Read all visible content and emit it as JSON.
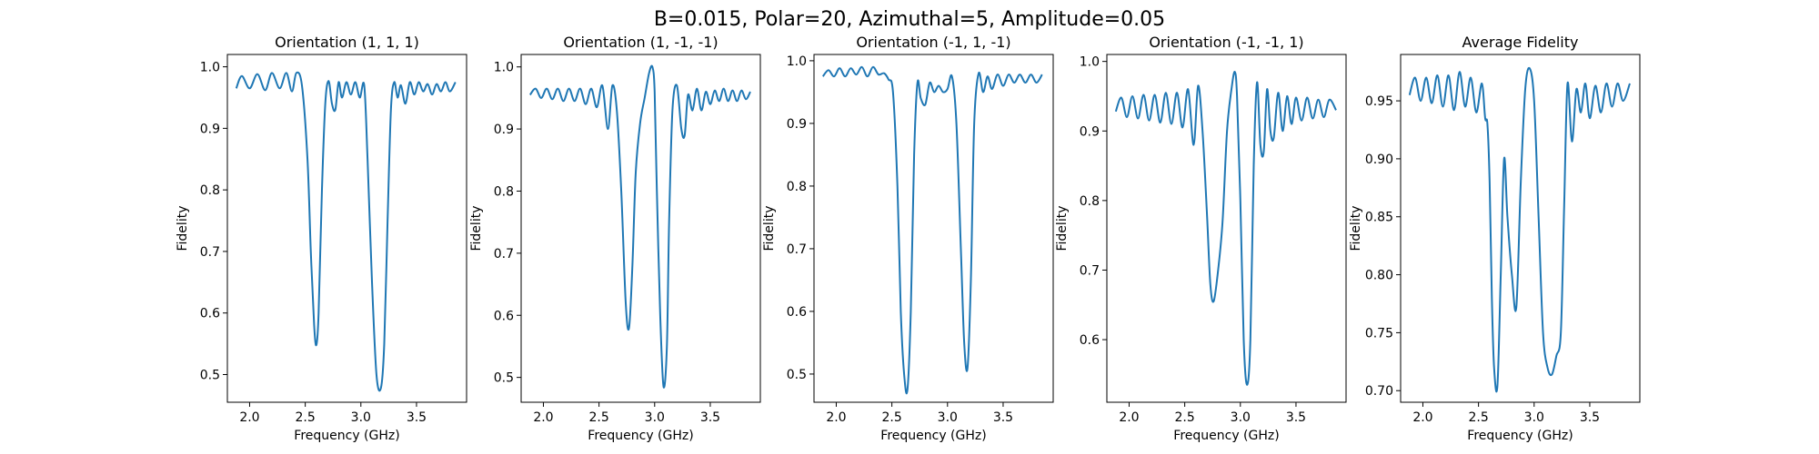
{
  "figure": {
    "suptitle": "B=0.015, Polar=20, Azimuthal=5, Amplitude=0.05",
    "line_color": "#1f77b4"
  },
  "chart_data": [
    {
      "type": "line",
      "title": "Orientation (1, 1, 1)",
      "xlabel": "Frequency (GHz)",
      "ylabel": "Fidelity",
      "xlim": [
        1.8,
        3.95
      ],
      "ylim": [
        0.455,
        1.02
      ],
      "xticks": [
        2.0,
        2.5,
        3.0,
        3.5
      ],
      "xtick_labels": [
        "2.0",
        "2.5",
        "3.0",
        "3.5"
      ],
      "yticks": [
        0.5,
        0.6,
        0.7,
        0.8,
        0.9,
        1.0
      ],
      "ytick_labels": [
        "0.5",
        "0.6",
        "0.7",
        "0.8",
        "0.9",
        "1.0"
      ],
      "x": [
        1.88,
        1.93,
        2.0,
        2.07,
        2.14,
        2.2,
        2.27,
        2.33,
        2.38,
        2.42,
        2.47,
        2.52,
        2.55,
        2.58,
        2.6,
        2.62,
        2.65,
        2.68,
        2.71,
        2.74,
        2.77,
        2.8,
        2.83,
        2.87,
        2.91,
        2.95,
        2.99,
        3.03,
        3.06,
        3.1,
        3.14,
        3.18,
        3.21,
        3.24,
        3.27,
        3.3,
        3.33,
        3.36,
        3.4,
        3.44,
        3.48,
        3.52,
        3.56,
        3.6,
        3.64,
        3.68,
        3.72,
        3.76,
        3.8,
        3.85
      ],
      "y": [
        0.965,
        0.985,
        0.965,
        0.988,
        0.962,
        0.99,
        0.965,
        0.99,
        0.96,
        0.99,
        0.97,
        0.85,
        0.7,
        0.58,
        0.548,
        0.6,
        0.8,
        0.94,
        0.977,
        0.94,
        0.93,
        0.975,
        0.95,
        0.975,
        0.955,
        0.975,
        0.95,
        0.97,
        0.85,
        0.65,
        0.5,
        0.478,
        0.55,
        0.75,
        0.93,
        0.975,
        0.95,
        0.97,
        0.94,
        0.975,
        0.955,
        0.975,
        0.96,
        0.972,
        0.955,
        0.972,
        0.96,
        0.975,
        0.96,
        0.975
      ]
    },
    {
      "type": "line",
      "title": "Orientation (1, -1, -1)",
      "xlabel": "Frequency (GHz)",
      "ylabel": "Fidelity",
      "xlim": [
        1.8,
        3.95
      ],
      "ylim": [
        0.46,
        1.02
      ],
      "xticks": [
        2.0,
        2.5,
        3.0,
        3.5
      ],
      "xtick_labels": [
        "2.0",
        "2.5",
        "3.0",
        "3.5"
      ],
      "yticks": [
        0.5,
        0.6,
        0.7,
        0.8,
        0.9,
        1.0
      ],
      "ytick_labels": [
        "0.5",
        "0.6",
        "0.7",
        "0.8",
        "0.9",
        "1.0"
      ],
      "x": [
        1.88,
        1.93,
        1.98,
        2.03,
        2.08,
        2.13,
        2.18,
        2.23,
        2.28,
        2.33,
        2.38,
        2.43,
        2.48,
        2.53,
        2.58,
        2.62,
        2.66,
        2.7,
        2.74,
        2.77,
        2.8,
        2.83,
        2.87,
        2.91,
        2.95,
        2.98,
        3.0,
        3.02,
        3.05,
        3.08,
        3.11,
        3.13,
        3.16,
        3.2,
        3.24,
        3.27,
        3.3,
        3.34,
        3.38,
        3.42,
        3.46,
        3.5,
        3.54,
        3.58,
        3.62,
        3.66,
        3.7,
        3.74,
        3.78,
        3.82,
        3.86
      ],
      "y": [
        0.955,
        0.965,
        0.95,
        0.965,
        0.948,
        0.965,
        0.945,
        0.965,
        0.945,
        0.965,
        0.94,
        0.965,
        0.935,
        0.97,
        0.9,
        0.97,
        0.93,
        0.8,
        0.62,
        0.58,
        0.68,
        0.83,
        0.91,
        0.95,
        0.99,
        1.0,
        0.96,
        0.8,
        0.6,
        0.485,
        0.55,
        0.75,
        0.93,
        0.97,
        0.9,
        0.89,
        0.955,
        0.93,
        0.965,
        0.93,
        0.96,
        0.94,
        0.962,
        0.945,
        0.965,
        0.945,
        0.962,
        0.945,
        0.962,
        0.948,
        0.96
      ]
    },
    {
      "type": "line",
      "title": "Orientation (-1, 1, -1)",
      "xlabel": "Frequency (GHz)",
      "ylabel": "Fidelity",
      "xlim": [
        1.8,
        3.95
      ],
      "ylim": [
        0.455,
        1.01
      ],
      "xticks": [
        2.0,
        2.5,
        3.0,
        3.5
      ],
      "xtick_labels": [
        "2.0",
        "2.5",
        "3.0",
        "3.5"
      ],
      "yticks": [
        0.5,
        0.6,
        0.7,
        0.8,
        0.9,
        1.0
      ],
      "ytick_labels": [
        "0.5",
        "0.6",
        "0.7",
        "0.8",
        "0.9",
        "1.0"
      ],
      "x": [
        1.88,
        1.93,
        1.98,
        2.03,
        2.08,
        2.13,
        2.18,
        2.23,
        2.28,
        2.33,
        2.38,
        2.43,
        2.47,
        2.51,
        2.55,
        2.58,
        2.61,
        2.64,
        2.67,
        2.7,
        2.73,
        2.76,
        2.8,
        2.84,
        2.88,
        2.92,
        2.96,
        3.0,
        3.04,
        3.08,
        3.12,
        3.15,
        3.18,
        3.21,
        3.24,
        3.28,
        3.32,
        3.36,
        3.4,
        3.45,
        3.5,
        3.55,
        3.6,
        3.65,
        3.7,
        3.75,
        3.8,
        3.85
      ],
      "y": [
        0.975,
        0.985,
        0.975,
        0.988,
        0.975,
        0.988,
        0.978,
        0.99,
        0.975,
        0.99,
        0.978,
        0.98,
        0.97,
        0.95,
        0.8,
        0.6,
        0.5,
        0.475,
        0.6,
        0.85,
        0.965,
        0.94,
        0.93,
        0.965,
        0.95,
        0.96,
        0.95,
        0.955,
        0.975,
        0.9,
        0.7,
        0.55,
        0.51,
        0.65,
        0.9,
        0.98,
        0.95,
        0.975,
        0.955,
        0.978,
        0.96,
        0.978,
        0.965,
        0.978,
        0.965,
        0.978,
        0.965,
        0.978
      ]
    },
    {
      "type": "line",
      "title": "Orientation (-1, -1, 1)",
      "xlabel": "Frequency (GHz)",
      "ylabel": "Fidelity",
      "xlim": [
        1.8,
        3.95
      ],
      "ylim": [
        0.51,
        1.01
      ],
      "xticks": [
        2.0,
        2.5,
        3.0,
        3.5
      ],
      "xtick_labels": [
        "2.0",
        "2.5",
        "3.0",
        "3.5"
      ],
      "yticks": [
        0.6,
        0.7,
        0.8,
        0.9,
        1.0
      ],
      "ytick_labels": [
        "0.6",
        "0.7",
        "0.8",
        "0.9",
        "1.0"
      ],
      "x": [
        1.88,
        1.93,
        1.98,
        2.03,
        2.08,
        2.13,
        2.18,
        2.23,
        2.28,
        2.33,
        2.38,
        2.43,
        2.48,
        2.53,
        2.58,
        2.62,
        2.66,
        2.7,
        2.73,
        2.76,
        2.8,
        2.84,
        2.88,
        2.92,
        2.95,
        2.97,
        3.0,
        3.03,
        3.06,
        3.09,
        3.12,
        3.15,
        3.18,
        3.21,
        3.24,
        3.27,
        3.3,
        3.34,
        3.38,
        3.42,
        3.46,
        3.5,
        3.55,
        3.6,
        3.65,
        3.7,
        3.75,
        3.8,
        3.86
      ],
      "y": [
        0.928,
        0.948,
        0.92,
        0.95,
        0.918,
        0.952,
        0.915,
        0.952,
        0.912,
        0.955,
        0.91,
        0.955,
        0.905,
        0.96,
        0.88,
        0.965,
        0.9,
        0.78,
        0.68,
        0.655,
        0.7,
        0.77,
        0.9,
        0.96,
        0.985,
        0.95,
        0.8,
        0.6,
        0.535,
        0.6,
        0.85,
        0.97,
        0.88,
        0.87,
        0.96,
        0.9,
        0.89,
        0.955,
        0.9,
        0.95,
        0.91,
        0.948,
        0.915,
        0.948,
        0.918,
        0.945,
        0.92,
        0.945,
        0.93
      ]
    },
    {
      "type": "line",
      "title": "Average Fidelity",
      "xlabel": "Frequency (GHz)",
      "ylabel": "Fidelity",
      "xlim": [
        1.8,
        3.95
      ],
      "ylim": [
        0.69,
        0.99
      ],
      "xticks": [
        2.0,
        2.5,
        3.0,
        3.5
      ],
      "xtick_labels": [
        "2.0",
        "2.5",
        "3.0",
        "3.5"
      ],
      "yticks": [
        0.7,
        0.75,
        0.8,
        0.85,
        0.9,
        0.95
      ],
      "ytick_labels": [
        "0.70",
        "0.75",
        "0.80",
        "0.85",
        "0.90",
        "0.95"
      ],
      "x": [
        1.88,
        1.93,
        1.98,
        2.03,
        2.08,
        2.13,
        2.18,
        2.23,
        2.28,
        2.33,
        2.38,
        2.43,
        2.48,
        2.53,
        2.56,
        2.58,
        2.6,
        2.62,
        2.64,
        2.67,
        2.7,
        2.73,
        2.76,
        2.8,
        2.84,
        2.88,
        2.92,
        2.96,
        3.0,
        3.04,
        3.08,
        3.12,
        3.16,
        3.2,
        3.24,
        3.27,
        3.3,
        3.34,
        3.38,
        3.42,
        3.46,
        3.5,
        3.55,
        3.6,
        3.65,
        3.7,
        3.75,
        3.8,
        3.86
      ],
      "y": [
        0.955,
        0.97,
        0.95,
        0.97,
        0.948,
        0.972,
        0.945,
        0.972,
        0.942,
        0.975,
        0.945,
        0.97,
        0.94,
        0.965,
        0.935,
        0.93,
        0.88,
        0.78,
        0.72,
        0.704,
        0.8,
        0.9,
        0.85,
        0.8,
        0.772,
        0.88,
        0.96,
        0.978,
        0.95,
        0.85,
        0.75,
        0.72,
        0.714,
        0.73,
        0.75,
        0.86,
        0.965,
        0.915,
        0.96,
        0.94,
        0.965,
        0.935,
        0.963,
        0.94,
        0.965,
        0.945,
        0.965,
        0.95,
        0.965
      ]
    }
  ]
}
